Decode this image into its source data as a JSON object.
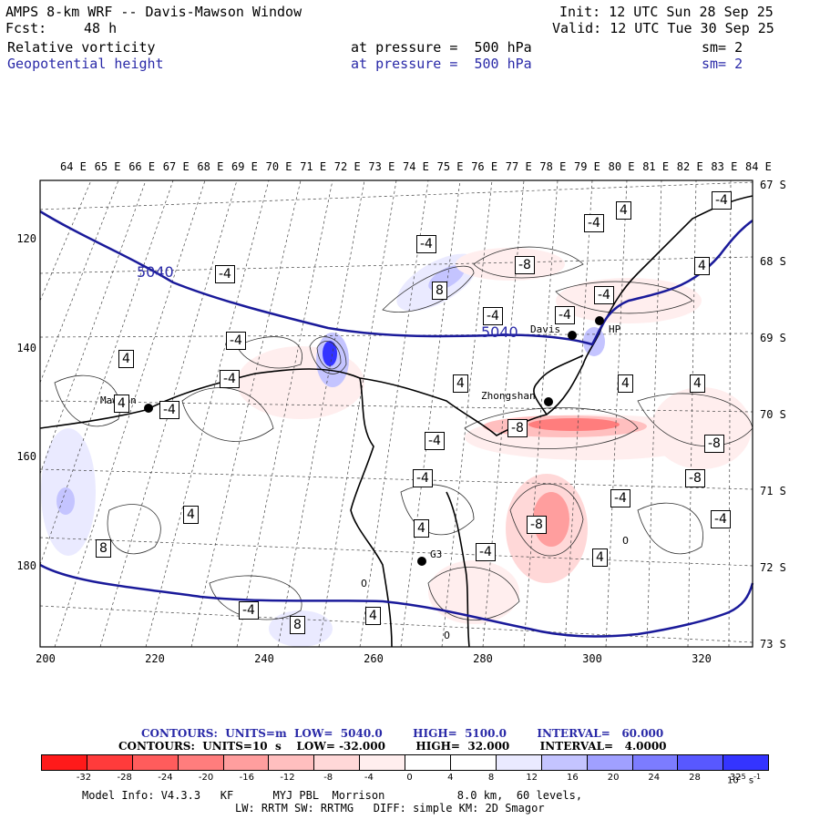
{
  "header": {
    "title": "AMPS 8-km WRF -- Davis-Mawson Window",
    "init": "Init: 12 UTC Sun 28 Sep 25",
    "fcst_label": "Fcst:",
    "fcst_value": "48 h",
    "valid": "Valid: 12 UTC Tue 30 Sep 25",
    "field1_name": "Relative vorticity",
    "field1_level": "at pressure =  500 hPa",
    "field1_sm": "sm= 2",
    "field2_name": "Geopotential height",
    "field2_level": "at pressure =  500 hPa",
    "field2_sm": "sm= 2"
  },
  "axes": {
    "top_lon": [
      "64 E",
      "65 E",
      "66 E",
      "67 E",
      "68 E",
      "69 E",
      "70 E",
      "71 E",
      "72 E",
      "73 E",
      "74 E",
      "75 E",
      "76 E",
      "77 E",
      "78 E",
      "79 E",
      "80 E",
      "81 E",
      "82 E",
      "83 E",
      "84 E"
    ],
    "right_lat": [
      "67 S",
      "68 S",
      "69 S",
      "70 S",
      "71 S",
      "72 S",
      "73 S"
    ],
    "left_y": [
      "120",
      "140",
      "160",
      "180"
    ],
    "bottom_x": [
      "200",
      "220",
      "240",
      "260",
      "280",
      "300",
      "320"
    ]
  },
  "stations": {
    "mawson": "Mawson",
    "davis": "Davis",
    "zhongshan": "Zhongshan",
    "g3": "G3",
    "hp": "HP"
  },
  "height_labels": [
    "5040",
    "5040"
  ],
  "vort_labels": [
    "-4",
    "-4",
    "-4",
    "-4",
    "-4",
    "-4",
    "-4",
    "-4",
    "-4",
    "-4",
    "-4",
    "-4",
    "-4",
    "-4",
    "-4",
    "-4",
    "4",
    "4",
    "4",
    "4",
    "4",
    "4",
    "4",
    "4",
    "4",
    "4",
    "4",
    "8",
    "8",
    "8",
    "-8",
    "-8",
    "-8",
    "-8",
    "-8",
    "0",
    "0",
    "0"
  ],
  "contour_info": {
    "line1": "CONTOURS:  UNITS=m  LOW=  5040.0        HIGH=  5100.0        INTERVAL=   60.000",
    "line2": "CONTOURS:  UNITS=10  s    LOW= -32.000        HIGH=  32.000        INTERVAL=   4.0000",
    "units_exp": "-5",
    "units_exp2": "-1"
  },
  "colorbar": {
    "ticks": [
      "-32",
      "-28",
      "-24",
      "-20",
      "-16",
      "-12",
      "-8",
      "-4",
      "0",
      "4",
      "8",
      "12",
      "16",
      "20",
      "24",
      "28",
      "32"
    ],
    "unit": "10",
    "unit_exp": "-5",
    "unit_s": "s",
    "unit_s_exp": "-1",
    "colors": [
      "#ff1a1a",
      "#ff3b3b",
      "#ff5c5c",
      "#ff7d7d",
      "#ff9e9e",
      "#ffbfbf",
      "#ffd8d8",
      "#ffeeee",
      "#ffffff",
      "#ffffff",
      "#eaeaff",
      "#c4c4ff",
      "#a0a0ff",
      "#7c7cff",
      "#5858ff",
      "#3434ff",
      "#1010ff"
    ]
  },
  "model_info": {
    "line1": "Model Info: V4.3.3   KF      MYJ PBL  Morrison           8.0 km,  60 levels,",
    "line2": "LW: RRTM SW: RRTMG   DIFF: simple KM: 2D Smagor"
  }
}
